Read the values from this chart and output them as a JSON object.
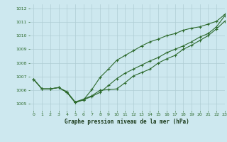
{
  "title": "Graphe pression niveau de la mer (hPa)",
  "bg_color": "#cde8ef",
  "grid_color": "#b0cdd4",
  "line_color": "#2d6a2d",
  "xlim": [
    -0.5,
    23
  ],
  "ylim": [
    1004.5,
    1012.3
  ],
  "yticks": [
    1005,
    1006,
    1007,
    1008,
    1009,
    1010,
    1011,
    1012
  ],
  "xticks": [
    0,
    1,
    2,
    3,
    4,
    5,
    6,
    7,
    8,
    9,
    10,
    11,
    12,
    13,
    14,
    15,
    16,
    17,
    18,
    19,
    20,
    21,
    22,
    23
  ],
  "series1": [
    1006.8,
    1006.1,
    1006.1,
    1006.2,
    1005.9,
    1005.15,
    1005.35,
    1005.6,
    1006.0,
    1006.05,
    1006.1,
    1006.55,
    1007.05,
    1007.3,
    1007.55,
    1008.0,
    1008.3,
    1008.55,
    1009.0,
    1009.3,
    1009.65,
    1010.0,
    1010.5,
    1011.05
  ],
  "series2": [
    1006.8,
    1006.1,
    1006.1,
    1006.2,
    1005.85,
    1005.1,
    1005.3,
    1005.55,
    1005.85,
    1006.35,
    1006.85,
    1007.25,
    1007.55,
    1007.85,
    1008.15,
    1008.4,
    1008.75,
    1009.0,
    1009.25,
    1009.55,
    1009.9,
    1010.15,
    1010.65,
    1011.45
  ],
  "series3": [
    1006.8,
    1006.1,
    1006.1,
    1006.2,
    1005.85,
    1005.1,
    1005.3,
    1006.05,
    1006.95,
    1007.55,
    1008.2,
    1008.55,
    1008.9,
    1009.25,
    1009.55,
    1009.75,
    1010.0,
    1010.15,
    1010.4,
    1010.55,
    1010.65,
    1010.85,
    1011.05,
    1011.55
  ]
}
